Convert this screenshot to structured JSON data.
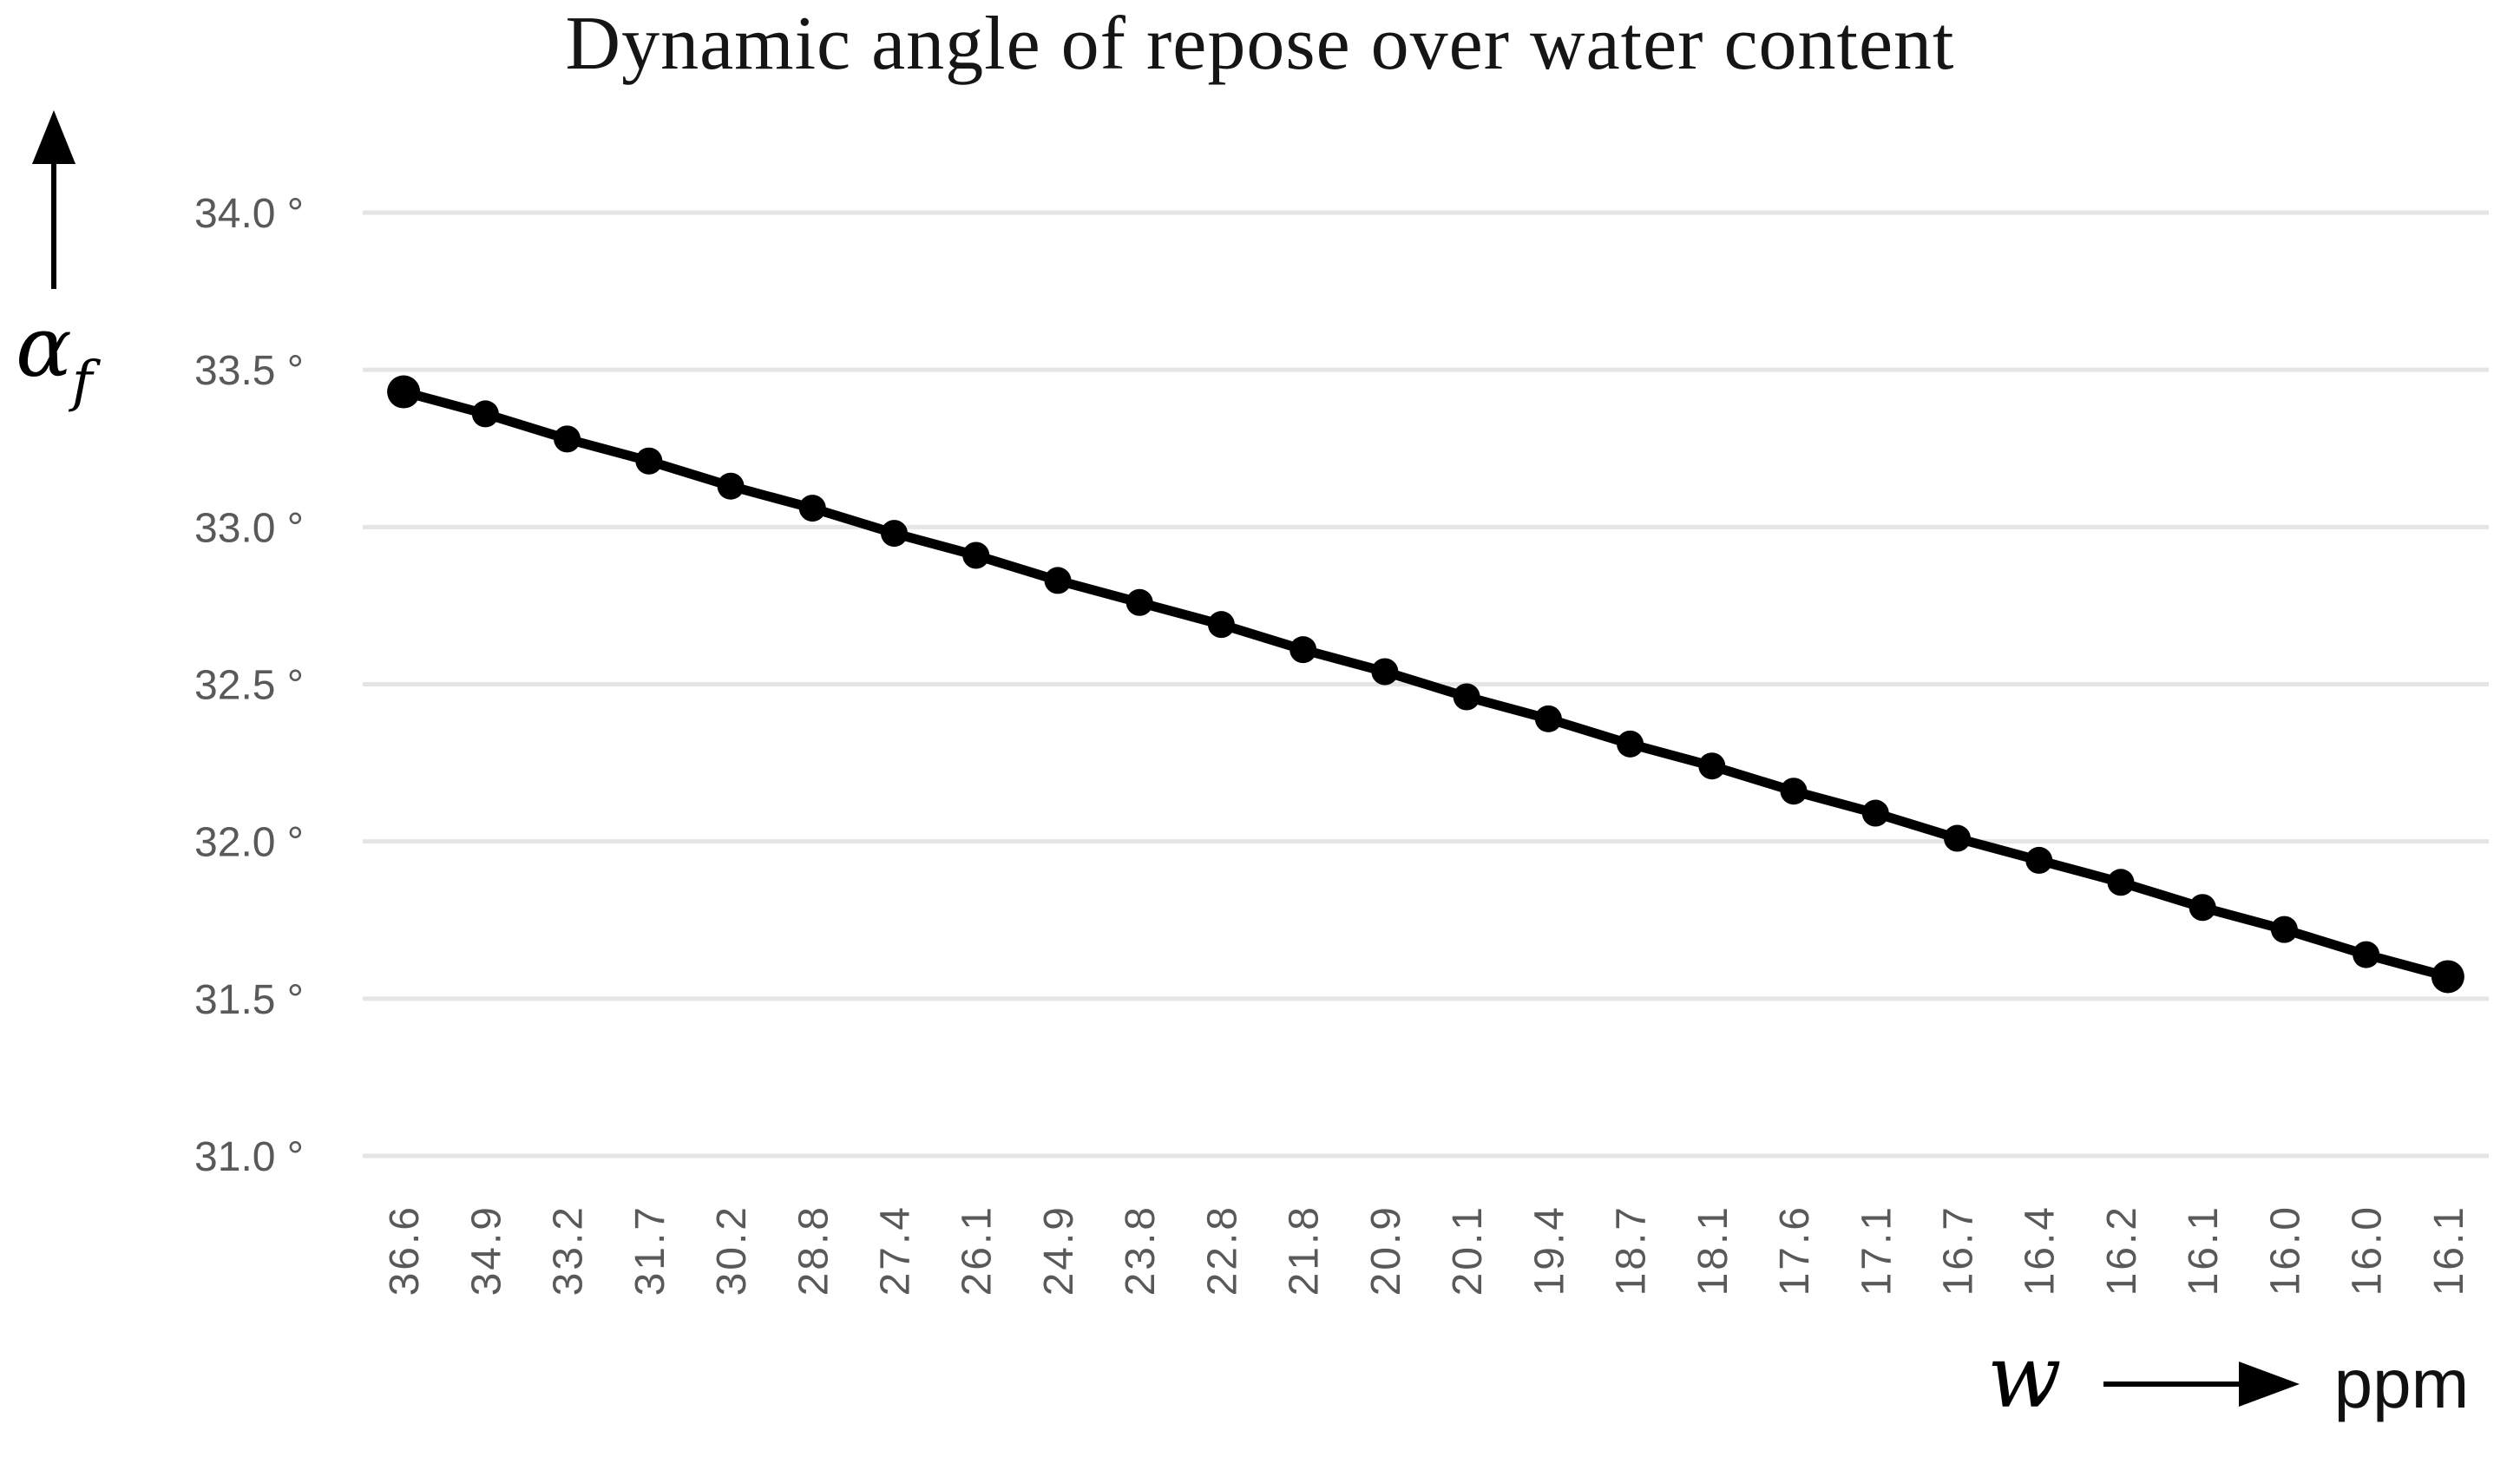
{
  "title": "Dynamic angle of repose over water content",
  "y_axis": {
    "symbol": "α",
    "symbol_subscript": "f",
    "tick_labels": [
      "34.0 °",
      "33.5 °",
      "33.0 °",
      "32.5 °",
      "32.0 °",
      "31.5 °",
      "31.0 °"
    ]
  },
  "x_axis": {
    "symbol": "w",
    "unit": "ppm"
  },
  "colors": {
    "series": "#000000",
    "gridline": "#e5e5e5",
    "tick_label": "#595959",
    "title": "#151515",
    "annotation": "#000000"
  },
  "chart_data": {
    "type": "line",
    "title": "Dynamic angle of repose over water content",
    "xlabel": "w (ppm)",
    "ylabel": "alpha_f (dynamic angle of repose, degrees)",
    "categories": [
      "36.6",
      "34.9",
      "33.2",
      "31.7",
      "30.2",
      "28.8",
      "27.4",
      "26.1",
      "24.9",
      "23.8",
      "22.8",
      "21.8",
      "20.9",
      "20.1",
      "19.4",
      "18.7",
      "18.1",
      "17.6",
      "17.1",
      "16.7",
      "16.4",
      "16.2",
      "16.1",
      "16.0",
      "16.0",
      "16.1"
    ],
    "series": [
      {
        "name": "dynamic angle of repose",
        "values": [
          33.43,
          33.36,
          33.28,
          33.21,
          33.13,
          33.06,
          32.98,
          32.91,
          32.83,
          32.76,
          32.69,
          32.61,
          32.54,
          32.46,
          32.39,
          32.31,
          32.24,
          32.16,
          32.09,
          32.01,
          31.94,
          31.87,
          31.79,
          31.72,
          31.64,
          31.57
        ]
      }
    ],
    "ylim": [
      31.0,
      34.0
    ],
    "ytick_step": 0.5,
    "ytick_labels": [
      "34.0 °",
      "33.5 °",
      "33.0 °",
      "32.5 °",
      "32.0 °",
      "31.5 °",
      "31.0 °"
    ],
    "grid": "horizontal",
    "legend_position": "none",
    "marker": "circle",
    "line_color": "#000000"
  }
}
